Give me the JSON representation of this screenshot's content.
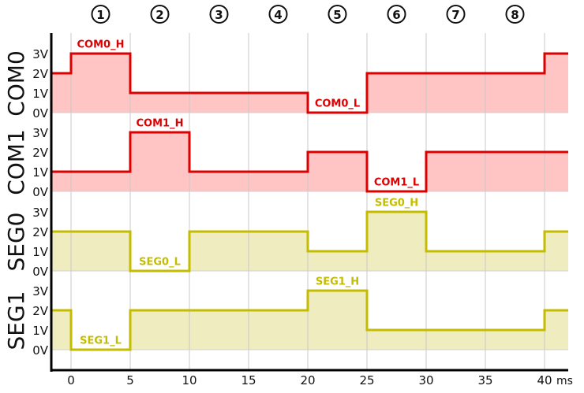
{
  "chart_data": {
    "type": "line",
    "title": "",
    "xlabel": "ms",
    "x_ticks": [
      0,
      5,
      10,
      15,
      20,
      25,
      30,
      35,
      40
    ],
    "xlim": [
      -1.67,
      42
    ],
    "y_ticks": [
      "0V",
      "1V",
      "2V",
      "3V"
    ],
    "ylim": [
      0,
      3
    ],
    "phases": [
      "1",
      "2",
      "3",
      "4",
      "5",
      "6",
      "7",
      "8"
    ],
    "series": [
      {
        "name": "COM0",
        "color": "#dd0000",
        "fill": "#ffc4c4",
        "steps": [
          [
            -1.67,
            2
          ],
          [
            0,
            3
          ],
          [
            5,
            1
          ],
          [
            20,
            0
          ],
          [
            25,
            2
          ],
          [
            40,
            3
          ]
        ],
        "labels": [
          {
            "text": "COM0_H",
            "t0": 0,
            "t1": 5,
            "v": 3.5
          },
          {
            "text": "COM0_L",
            "t0": 20,
            "t1": 25,
            "v": 0.5
          }
        ]
      },
      {
        "name": "COM1",
        "color": "#dd0000",
        "fill": "#ffc4c4",
        "steps": [
          [
            -1.67,
            1
          ],
          [
            5,
            3
          ],
          [
            10,
            1
          ],
          [
            20,
            2
          ],
          [
            25,
            0
          ],
          [
            30,
            2
          ]
        ],
        "labels": [
          {
            "text": "COM1_H",
            "t0": 5,
            "t1": 10,
            "v": 3.5
          },
          {
            "text": "COM1_L",
            "t0": 25,
            "t1": 30,
            "v": 0.5
          }
        ]
      },
      {
        "name": "SEG0",
        "color": "#c4bc00",
        "fill": "#efedbf",
        "steps": [
          [
            -1.67,
            2
          ],
          [
            5,
            0
          ],
          [
            10,
            2
          ],
          [
            20,
            1
          ],
          [
            25,
            3
          ],
          [
            30,
            1
          ],
          [
            40,
            2
          ]
        ],
        "labels": [
          {
            "text": "SEG0_L",
            "t0": 5,
            "t1": 10,
            "v": 0.5
          },
          {
            "text": "SEG0_H",
            "t0": 25,
            "t1": 30,
            "v": 3.5
          }
        ]
      },
      {
        "name": "SEG1",
        "color": "#c4bc00",
        "fill": "#efedbf",
        "steps": [
          [
            -1.67,
            2
          ],
          [
            0,
            0
          ],
          [
            5,
            2
          ],
          [
            20,
            3
          ],
          [
            25,
            1
          ],
          [
            40,
            2
          ]
        ],
        "labels": [
          {
            "text": "SEG1_L",
            "t0": 0,
            "t1": 5,
            "v": 0.5
          },
          {
            "text": "SEG1_H",
            "t0": 20,
            "t1": 25,
            "v": 3.5
          }
        ]
      }
    ]
  }
}
